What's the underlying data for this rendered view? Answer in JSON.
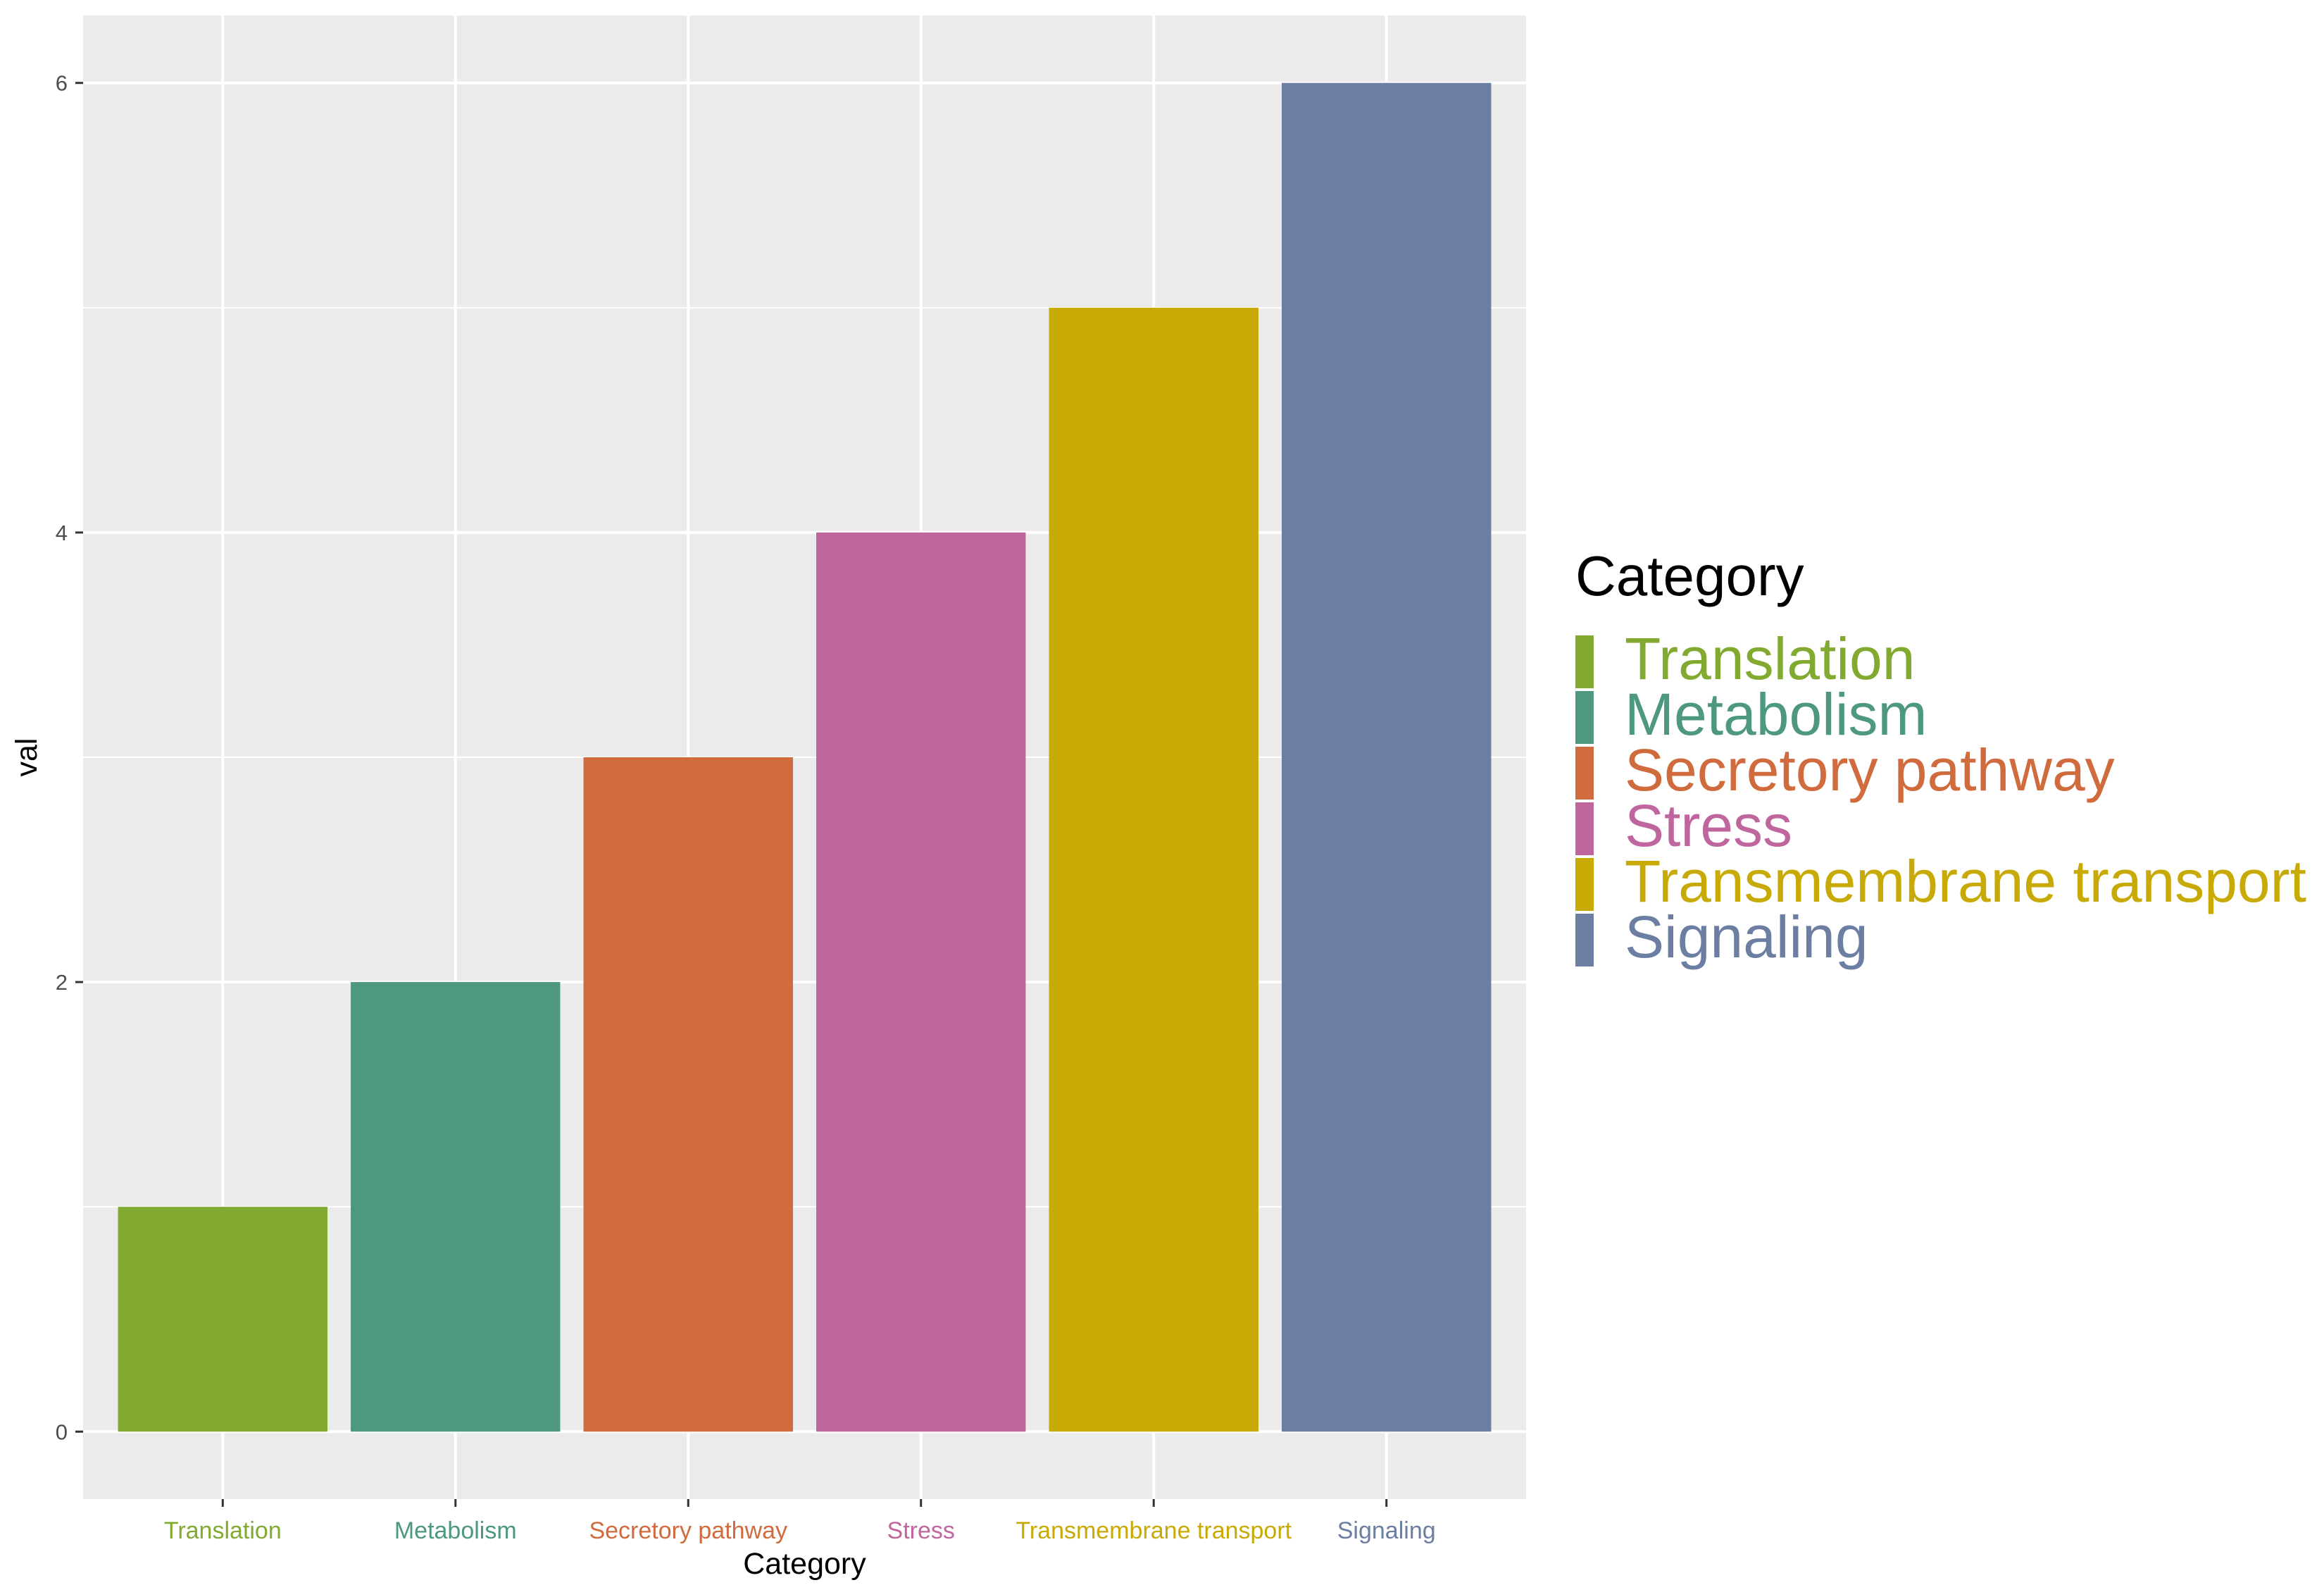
{
  "chart_data": {
    "type": "bar",
    "title": "",
    "xlabel": "Category",
    "ylabel": "val",
    "categories": [
      "Translation",
      "Metabolism",
      "Secretory pathway",
      "Stress",
      "Transmembrane transport",
      "Signaling"
    ],
    "values": [
      1,
      2,
      3,
      4,
      5,
      6
    ],
    "colors": [
      "#82a930",
      "#4e9880",
      "#d06b3e",
      "#c0669e",
      "#c8aa07",
      "#6c7ea1"
    ],
    "ylim": [
      -0.3,
      6.3
    ],
    "yticks": [
      0,
      2,
      4,
      6
    ],
    "grid": true,
    "panel_background": "#ebebeb",
    "grid_color": "#ffffff",
    "legend": {
      "title": "Category",
      "position": "right",
      "entries": [
        "Translation",
        "Metabolism",
        "Secretory pathway",
        "Stress",
        "Transmembrane transport",
        "Signaling"
      ]
    }
  }
}
